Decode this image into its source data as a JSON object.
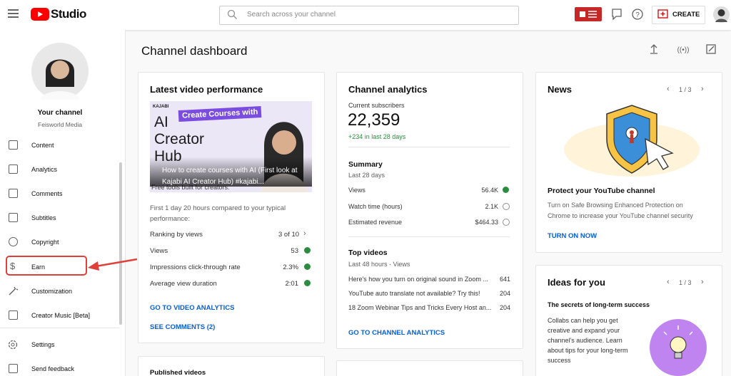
{
  "header": {
    "logo": "Studio",
    "search_placeholder": "Search across your channel",
    "create_button": "CREATE"
  },
  "sidebar": {
    "channel_label": "Your channel",
    "channel_name": "Feisworld Media",
    "nav": [
      "Content",
      "Analytics",
      "Comments",
      "Subtitles",
      "Copyright",
      "Earn",
      "Customization",
      "Creator Music [Beta]"
    ],
    "footer_nav": [
      "Settings",
      "Send feedback"
    ]
  },
  "page_title": "Channel dashboard",
  "latest_video": {
    "title": "Latest video performance",
    "thumbnail": {
      "brand": "KAJABI",
      "banner": "Create Courses with",
      "headline": "AI Creator Hub",
      "caption": "Free tools built for creators."
    },
    "video_title": "How to create courses with AI (First look at Kajabi AI Creator Hub) #kajabi...",
    "comparison": "First 1 day 20 hours compared to your typical performance:",
    "rows": [
      [
        "Ranking by views",
        "3 of 10"
      ],
      [
        "Views",
        "53"
      ],
      [
        "Impressions click-through rate",
        "2.3%"
      ],
      [
        "Average view duration",
        "2:01"
      ]
    ],
    "links": [
      "GO TO VIDEO ANALYTICS",
      "SEE COMMENTS (2)"
    ]
  },
  "published_videos": {
    "title": "Published videos"
  },
  "channel_analytics": {
    "title": "Channel analytics",
    "subscribers_label": "Current subscribers",
    "subscribers": "22,359",
    "subscribers_change": "+234 in last 28 days",
    "summary_title": "Summary",
    "summary_period": "Last 28 days",
    "summary": [
      [
        "Views",
        "56.4K"
      ],
      [
        "Watch time (hours)",
        "2.1K"
      ],
      [
        "Estimated revenue",
        "$464.33"
      ]
    ],
    "top_videos_title": "Top videos",
    "top_videos_period": "Last 48 hours · Views",
    "top_videos": [
      [
        "Here's how you turn on original sound in Zoom ...",
        "641"
      ],
      [
        "YouTube auto translate not available? Try this!",
        "204"
      ],
      [
        "18 Zoom Webinar Tips and Tricks Every Host an...",
        "204"
      ]
    ],
    "link": "GO TO CHANNEL ANALYTICS"
  },
  "news": {
    "title": "News",
    "pager": "1 / 3",
    "headline": "Protect your YouTube channel",
    "body": "Turn on Safe Browsing Enhanced Protection on Chrome to increase your YouTube channel security",
    "link": "TURN ON NOW"
  },
  "ideas": {
    "title": "Ideas for you",
    "pager": "1 / 3",
    "headline": "The secrets of long-term success",
    "body": "Collabs can help you get creative and expand your channel's audience. Learn about tips for your long-term success"
  }
}
